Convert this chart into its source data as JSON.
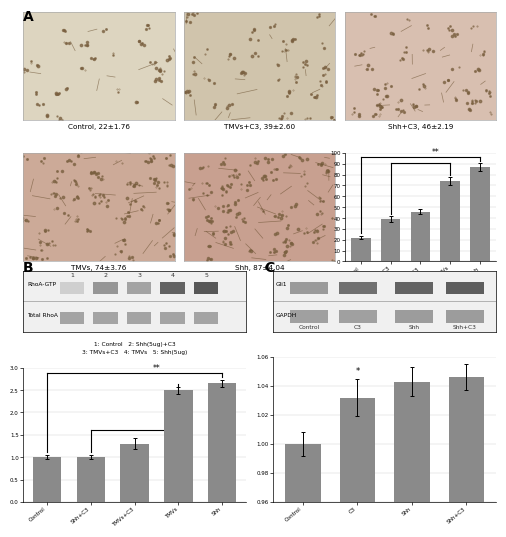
{
  "panel_A_bar": {
    "categories": [
      "Control",
      "TMVs+C3",
      "Shh+C3",
      "TMVs",
      "Shh"
    ],
    "values": [
      22,
      39,
      46,
      74,
      87
    ],
    "errors": [
      1.76,
      2.6,
      2.19,
      3.76,
      4.04
    ],
    "bar_color": "#8a8a8a",
    "ylim": [
      0,
      100
    ],
    "yticks": [
      0,
      10,
      20,
      30,
      40,
      50,
      60,
      70,
      80,
      90,
      100
    ]
  },
  "panel_A_img_colors": [
    "#ddd5c0",
    "#d0c4ac",
    "#d8bfb0",
    "#ccaa98",
    "#c8a090"
  ],
  "panel_A_labels": [
    "Control, 22±1.76",
    "TMVs+C3, 39±2.60",
    "Shh+C3, 46±2.19",
    "TMVs, 74±3.76",
    "Shh, 87±4.04"
  ],
  "panel_B_bar": {
    "categories": [
      "Control",
      "Shh+C3",
      "TMVs+C3",
      "TMVs",
      "Shh"
    ],
    "values": [
      1.0,
      1.0,
      1.3,
      2.5,
      2.65
    ],
    "errors": [
      0.05,
      0.05,
      0.12,
      0.08,
      0.08
    ],
    "bar_color": "#8a8a8a",
    "ylim": [
      0,
      3
    ],
    "yticks": [
      0,
      0.5,
      1,
      1.5,
      2,
      2.5,
      3
    ],
    "lane_labels": [
      "1",
      "2",
      "3",
      "4",
      "5"
    ],
    "legend_line1": "1: Control   2: Shh(5ug)+C3",
    "legend_line2": "3: TMVs+C3   4: TMVs   5: Shh(5ug)",
    "wb_row1_label": "RhoA-GTP",
    "wb_row2_label": "Total RhoA",
    "rhoA_GTP_intensities": [
      0.25,
      0.55,
      0.48,
      0.82,
      0.88
    ],
    "total_RhoA_intensities": [
      0.65,
      0.65,
      0.65,
      0.65,
      0.65
    ]
  },
  "panel_C_bar": {
    "categories": [
      "Control",
      "C3",
      "Shh",
      "Shh+C3"
    ],
    "values": [
      1.0,
      1.032,
      1.043,
      1.046
    ],
    "errors": [
      0.008,
      0.013,
      0.01,
      0.009
    ],
    "bar_color": "#8a8a8a",
    "ylim": [
      0.96,
      1.06
    ],
    "yticks": [
      0.96,
      0.98,
      1.0,
      1.02,
      1.04,
      1.06
    ],
    "lane_labels": [
      "Control",
      "C3",
      "Shh",
      "Shh+C3"
    ],
    "wb_row1_label": "Gli1",
    "wb_row2_label": "GAPDH",
    "gli1_intensities": [
      0.55,
      0.78,
      0.85,
      0.88
    ],
    "gapdh_intensities": [
      0.62,
      0.62,
      0.65,
      0.65
    ]
  },
  "panel_label_fontsize": 10,
  "background_color": "#ffffff"
}
